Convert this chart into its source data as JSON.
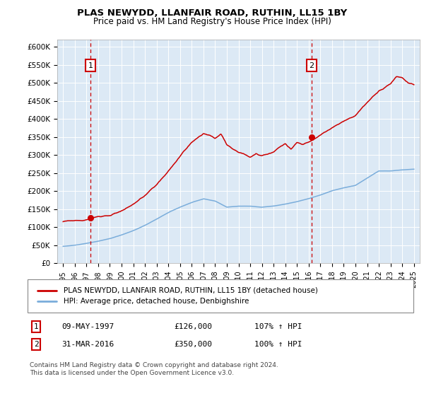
{
  "title1": "PLAS NEWYDD, LLANFAIR ROAD, RUTHIN, LL15 1BY",
  "title2": "Price paid vs. HM Land Registry's House Price Index (HPI)",
  "ylabel_ticks": [
    "£0",
    "£50K",
    "£100K",
    "£150K",
    "£200K",
    "£250K",
    "£300K",
    "£350K",
    "£400K",
    "£450K",
    "£500K",
    "£550K",
    "£600K"
  ],
  "ytick_vals": [
    0,
    50000,
    100000,
    150000,
    200000,
    250000,
    300000,
    350000,
    400000,
    450000,
    500000,
    550000,
    600000
  ],
  "xlim": [
    1994.5,
    2025.5
  ],
  "ylim": [
    0,
    620000
  ],
  "bg_color": "#dce9f5",
  "marker1_year": 1997.35,
  "marker1_price": 126000,
  "marker2_year": 2016.25,
  "marker2_price": 350000,
  "legend_line1": "PLAS NEWYDD, LLANFAIR ROAD, RUTHIN, LL15 1BY (detached house)",
  "legend_line2": "HPI: Average price, detached house, Denbighshire",
  "table_row1": [
    "1",
    "09-MAY-1997",
    "£126,000",
    "107% ↑ HPI"
  ],
  "table_row2": [
    "2",
    "31-MAR-2016",
    "£350,000",
    "100% ↑ HPI"
  ],
  "footer": "Contains HM Land Registry data © Crown copyright and database right 2024.\nThis data is licensed under the Open Government Licence v3.0.",
  "red_color": "#cc0000",
  "blue_color": "#7aaddb"
}
